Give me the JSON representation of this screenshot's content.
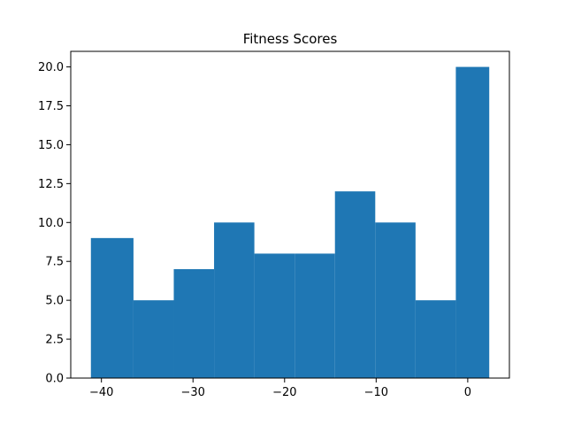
{
  "chart_data": {
    "type": "bar",
    "title": "Fitness Scores",
    "xlabel": "",
    "ylabel": "",
    "bin_edges": [
      -41.15,
      -36.5,
      -32.1,
      -27.7,
      -23.3,
      -18.9,
      -14.5,
      -10.1,
      -5.7,
      -1.3,
      2.35
    ],
    "counts": [
      9,
      5,
      7,
      10,
      8,
      8,
      12,
      10,
      5,
      20
    ],
    "xlim": [
      -43.35,
      4.55
    ],
    "ylim": [
      0,
      21
    ],
    "xticks": [
      -40,
      -30,
      -20,
      -10,
      0
    ],
    "xtick_labels": [
      "−40",
      "−30",
      "−20",
      "−10",
      "0"
    ],
    "yticks": [
      0,
      2.5,
      5,
      7.5,
      10,
      12.5,
      15,
      17.5,
      20
    ],
    "ytick_labels": [
      "0.0",
      "2.5",
      "5.0",
      "7.5",
      "10.0",
      "12.5",
      "15.0",
      "17.5",
      "20.0"
    ],
    "bar_color": "#1f77b4",
    "grid": false
  }
}
